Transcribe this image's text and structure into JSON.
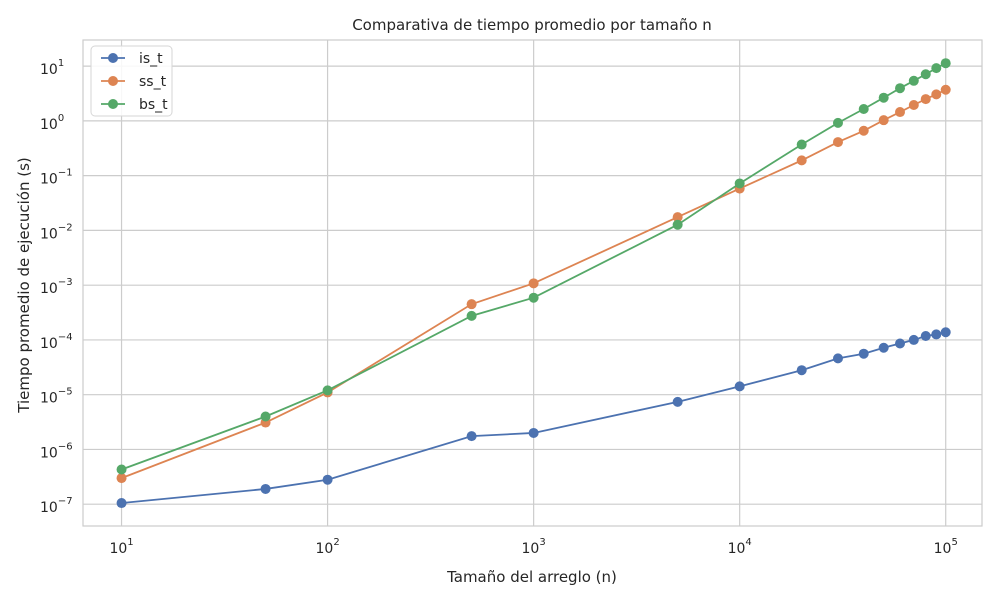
{
  "chart_data": {
    "type": "line",
    "title": "Comparativa de tiempo promedio por tamaño n",
    "xlabel": "Tamaño del arreglo (n)",
    "ylabel": "Tiempo promedio de ejecución (s)",
    "xscale": "log",
    "yscale": "log",
    "xlim": [
      6.5,
      150000
    ],
    "ylim": [
      4e-08,
      30
    ],
    "grid": true,
    "legend": "top-left",
    "x": [
      10,
      50,
      100,
      500,
      1000,
      5000,
      10000,
      20000,
      30000,
      40000,
      50000,
      60000,
      70000,
      80000,
      90000,
      100000
    ],
    "x_ticks": [
      {
        "base": "10",
        "exp": "1",
        "value": 10
      },
      {
        "base": "10",
        "exp": "2",
        "value": 100
      },
      {
        "base": "10",
        "exp": "3",
        "value": 1000
      },
      {
        "base": "10",
        "exp": "4",
        "value": 10000
      },
      {
        "base": "10",
        "exp": "5",
        "value": 100000
      }
    ],
    "y_ticks": [
      {
        "base": "10",
        "exp": "−7",
        "value": 1e-07
      },
      {
        "base": "10",
        "exp": "−6",
        "value": 1e-06
      },
      {
        "base": "10",
        "exp": "−5",
        "value": 1e-05
      },
      {
        "base": "10",
        "exp": "−4",
        "value": 0.0001
      },
      {
        "base": "10",
        "exp": "−3",
        "value": 0.001
      },
      {
        "base": "10",
        "exp": "−2",
        "value": 0.01
      },
      {
        "base": "10",
        "exp": "−1",
        "value": 0.1
      },
      {
        "base": "10",
        "exp": "0",
        "value": 1
      },
      {
        "base": "10",
        "exp": "1",
        "value": 10
      }
    ],
    "series": [
      {
        "name": "is_t",
        "color": "#4c72b0",
        "values": [
          1.05e-07,
          1.9e-07,
          2.8e-07,
          1.75e-06,
          2e-06,
          7.4e-06,
          1.42e-05,
          2.8e-05,
          4.6e-05,
          5.6e-05,
          7.2e-05,
          8.6e-05,
          0.0001,
          0.000118,
          0.000126,
          0.000138
        ]
      },
      {
        "name": "ss_t",
        "color": "#dd8452",
        "values": [
          3e-07,
          3.1e-06,
          1.1e-05,
          0.00045,
          0.00108,
          0.0175,
          0.058,
          0.19,
          0.41,
          0.66,
          1.03,
          1.45,
          1.95,
          2.5,
          3.05,
          3.7
        ]
      },
      {
        "name": "bs_t",
        "color": "#55a868",
        "values": [
          4.3e-07,
          4e-06,
          1.2e-05,
          0.000275,
          0.00059,
          0.0127,
          0.072,
          0.37,
          0.92,
          1.65,
          2.65,
          3.95,
          5.4,
          7.1,
          9.2,
          11.3
        ]
      }
    ]
  }
}
